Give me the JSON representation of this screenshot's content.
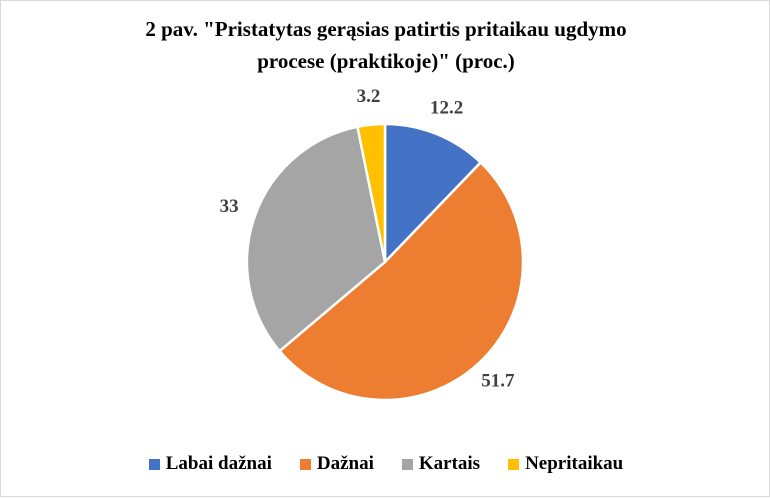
{
  "chart_data": {
    "type": "pie",
    "title_line1": "2 pav. \"Pristatytas gerąsias patirtis pritaikau ugdymo",
    "title_line2": "procese (praktikoje)\"  (proc.)",
    "categories": [
      "Labai dažnai",
      "Dažnai",
      "Kartais",
      "Nepritaikau"
    ],
    "values": [
      12.2,
      51.7,
      33,
      3.2
    ],
    "value_labels": [
      "12.2",
      "51.7",
      "33",
      "3.2"
    ],
    "colors": [
      "#4472c4",
      "#ed7d31",
      "#a5a5a5",
      "#ffc000"
    ],
    "legend_position": "bottom",
    "start_angle_deg": 0,
    "direction": "clockwise"
  }
}
